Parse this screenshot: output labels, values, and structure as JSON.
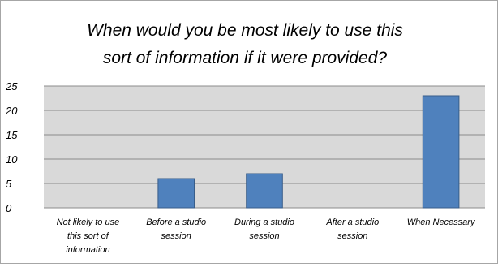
{
  "chart_data": {
    "type": "bar",
    "title_lines": [
      "When would you be most likely to use this",
      "sort of information if it were provided?"
    ],
    "categories": [
      [
        "Not likely to use",
        "this sort of",
        "information"
      ],
      [
        "Before a studio",
        "session"
      ],
      [
        "During a studio",
        "session"
      ],
      [
        "After a studio",
        "session"
      ],
      [
        "When Necessary"
      ]
    ],
    "values": [
      0,
      6,
      7,
      0,
      23
    ],
    "ylim": [
      0,
      25
    ],
    "yticks": [
      0,
      5,
      10,
      15,
      20,
      25
    ],
    "xlabel": "",
    "ylabel": "",
    "grid": true,
    "legend": "none"
  },
  "colors": {
    "bar_fill": "#4f81bd",
    "bar_stroke": "#385d8a",
    "plot_background": "#d9d9d9",
    "gridline": "#8c8c8c"
  }
}
